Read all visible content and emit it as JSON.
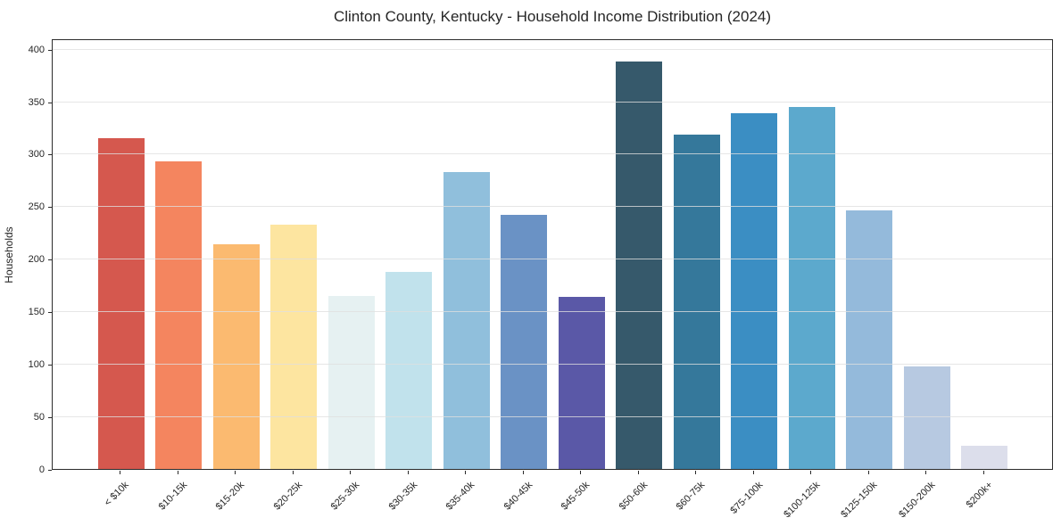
{
  "title": "Clinton County, Kentucky - Household Income Distribution (2024)",
  "chart_data": {
    "type": "bar",
    "title": "Clinton County, Kentucky - Household Income Distribution (2024)",
    "xlabel": "",
    "ylabel": "Households",
    "ylim": [
      0,
      400
    ],
    "yticks": [
      0,
      50,
      100,
      150,
      200,
      250,
      300,
      350,
      400
    ],
    "grid": "horizontal-light-over-bars",
    "legend": "none",
    "background_color": "#ffffff",
    "categories": [
      "< $10k",
      "$10-15k",
      "$15-20k",
      "$20-25k",
      "$25-30k",
      "$30-35k",
      "$35-40k",
      "$40-45k",
      "$45-50k",
      "$50-60k",
      "$60-75k",
      "$75-100k",
      "$100-125k",
      "$125-150k",
      "$150-200k",
      "$200k+"
    ],
    "values": [
      315,
      293,
      214,
      233,
      165,
      188,
      283,
      242,
      164,
      388,
      319,
      339,
      345,
      246,
      98,
      22
    ],
    "bar_colors": [
      "#d5584e",
      "#f4855f",
      "#fbba70",
      "#fde5a0",
      "#e6f1f2",
      "#c1e2ec",
      "#90bfdc",
      "#6a92c5",
      "#5a58a7",
      "#36596b",
      "#35789b",
      "#3b8ec3",
      "#5ca9cd",
      "#94badb",
      "#b7c9e1",
      "#dcdeeb"
    ]
  }
}
